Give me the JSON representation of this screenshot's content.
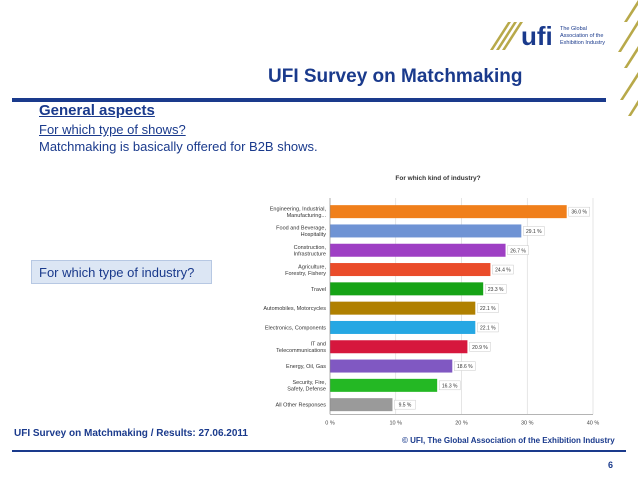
{
  "logo": {
    "wordmark": "ufi",
    "tagline_1": "The Global",
    "tagline_2": "Association of the",
    "tagline_3": "Exhibition Industry"
  },
  "slide": {
    "title": "UFI Survey on Matchmaking",
    "heading": "General aspects",
    "question": "For which type of shows?",
    "answer": "Matchmaking is basically offered for B2B shows.",
    "industry_question": "For which type of industry?"
  },
  "footer": {
    "left": "UFI Survey on Matchmaking / Results: 27.06.2011",
    "right": "© UFI, The Global Association of the Exhibition Industry",
    "page": "6"
  },
  "chart_data": {
    "type": "bar",
    "orientation": "horizontal",
    "title": "For which kind of industry?",
    "categories": [
      [
        "Engineering, Industrial,",
        "Manufacturing..."
      ],
      [
        "Food and Beverage,",
        "Hospitality"
      ],
      [
        "Construction,",
        "Infrastructure"
      ],
      [
        "Agriculture,",
        "Forestry, Fishery"
      ],
      [
        "Travel"
      ],
      [
        "Automobiles, Motorcycles"
      ],
      [
        "Electronics, Components"
      ],
      [
        "IT and",
        "Telecommunications"
      ],
      [
        "Energy, Oil, Gas"
      ],
      [
        "Security, Fire,",
        "Safety, Defense"
      ],
      [
        "All Other Responses"
      ]
    ],
    "values": [
      36.0,
      29.1,
      26.7,
      24.4,
      23.3,
      22.1,
      22.1,
      20.9,
      18.6,
      16.3,
      9.5
    ],
    "value_labels": [
      "36.0 %",
      "29.1 %",
      "26.7 %",
      "24.4 %",
      "23.3 %",
      "22.1 %",
      "22.1 %",
      "20.9 %",
      "18.6 %",
      "16.3 %",
      "9.5 %"
    ],
    "colors": [
      "#f07f1b",
      "#6f93d4",
      "#9e3fc4",
      "#ea4c2a",
      "#16a316",
      "#b08000",
      "#26a7e3",
      "#d6173d",
      "#8058c2",
      "#24b824",
      "#9a9a9a"
    ],
    "xlim": [
      0,
      40
    ],
    "x_ticks": [
      0,
      10,
      20,
      30,
      40
    ],
    "x_tick_labels": [
      "0 %",
      "10 %",
      "20 %",
      "30 %",
      "40 %"
    ],
    "grid": true
  }
}
